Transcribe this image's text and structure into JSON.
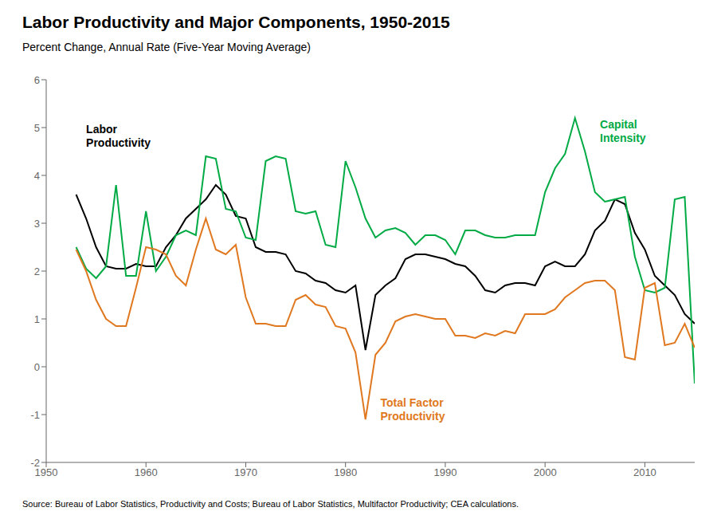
{
  "chart_data": {
    "type": "line",
    "title": "Labor Productivity and Major Components, 1950-2015",
    "subtitle": "Percent Change, Annual Rate (Five-Year Moving Average)",
    "source": "Source: Bureau of Labor Statistics, Productivity and Costs; Bureau of Labor Statistics, Multifactor Productivity; CEA calculations.",
    "x": [
      1953,
      1954,
      1955,
      1956,
      1957,
      1958,
      1959,
      1960,
      1961,
      1962,
      1963,
      1964,
      1965,
      1966,
      1967,
      1968,
      1969,
      1970,
      1971,
      1972,
      1973,
      1974,
      1975,
      1976,
      1977,
      1978,
      1979,
      1980,
      1981,
      1982,
      1983,
      1984,
      1985,
      1986,
      1987,
      1988,
      1989,
      1990,
      1991,
      1992,
      1993,
      1994,
      1995,
      1996,
      1997,
      1998,
      1999,
      2000,
      2001,
      2002,
      2003,
      2004,
      2005,
      2006,
      2007,
      2008,
      2009,
      2010,
      2011,
      2012,
      2013,
      2014,
      2015
    ],
    "series": [
      {
        "name": "Labor\nProductivity",
        "color": "#000000",
        "values": [
          3.6,
          3.1,
          2.5,
          2.1,
          2.05,
          2.05,
          2.15,
          2.1,
          2.1,
          2.5,
          2.75,
          3.1,
          3.3,
          3.5,
          3.8,
          3.6,
          3.15,
          3.1,
          2.5,
          2.4,
          2.4,
          2.35,
          2.0,
          1.95,
          1.8,
          1.75,
          1.6,
          1.55,
          1.7,
          0.35,
          1.5,
          1.7,
          1.85,
          2.25,
          2.35,
          2.35,
          2.3,
          2.25,
          2.15,
          2.1,
          1.9,
          1.6,
          1.55,
          1.7,
          1.75,
          1.75,
          1.7,
          2.1,
          2.2,
          2.1,
          2.1,
          2.35,
          2.85,
          3.05,
          3.5,
          3.4,
          2.8,
          2.45,
          1.9,
          1.7,
          1.5,
          1.1,
          0.9
        ]
      },
      {
        "name": "Capital\nIntensity",
        "color": "#00aa44",
        "values": [
          2.5,
          2.05,
          1.85,
          2.1,
          3.8,
          1.9,
          1.9,
          3.25,
          2.0,
          2.3,
          2.75,
          2.85,
          2.75,
          4.4,
          4.35,
          3.3,
          3.25,
          2.7,
          2.65,
          4.3,
          4.4,
          4.35,
          3.25,
          3.2,
          3.25,
          2.55,
          2.5,
          4.3,
          3.75,
          3.1,
          2.7,
          2.85,
          2.9,
          2.8,
          2.55,
          2.75,
          2.75,
          2.65,
          2.35,
          2.85,
          2.85,
          2.75,
          2.7,
          2.7,
          2.75,
          2.75,
          2.75,
          3.65,
          4.15,
          4.45,
          5.2,
          4.5,
          3.65,
          3.45,
          3.5,
          3.55,
          2.3,
          1.6,
          1.55,
          1.65,
          3.5,
          3.55,
          -0.35
        ]
      },
      {
        "name": "Total Factor\nProductivity",
        "color": "#e07820",
        "values": [
          2.45,
          2.0,
          1.4,
          1.0,
          0.85,
          0.85,
          1.65,
          2.5,
          2.45,
          2.35,
          1.9,
          1.7,
          2.45,
          3.1,
          2.45,
          2.35,
          2.55,
          1.45,
          0.9,
          0.9,
          0.85,
          0.85,
          1.4,
          1.5,
          1.3,
          1.25,
          0.85,
          0.8,
          0.3,
          -1.1,
          0.25,
          0.5,
          0.95,
          1.05,
          1.1,
          1.05,
          1.0,
          1.0,
          0.65,
          0.65,
          0.6,
          0.7,
          0.65,
          0.75,
          0.7,
          1.1,
          1.1,
          1.1,
          1.2,
          1.45,
          1.6,
          1.75,
          1.8,
          1.8,
          1.6,
          0.2,
          0.15,
          1.65,
          1.75,
          0.45,
          0.5,
          0.9,
          0.4
        ]
      }
    ],
    "annotations": [
      {
        "text": "Labor\nProductivity",
        "x": 1954.0,
        "y": 4.55,
        "color": "#000000",
        "position": "above"
      },
      {
        "text": "Capital\nIntensity",
        "x": 2005.5,
        "y": 4.65,
        "color": "#00aa44",
        "position": "above"
      },
      {
        "text": "Total Factor\nProductivity",
        "x": 1983.5,
        "y": -0.6,
        "color": "#e07820",
        "position": "below"
      }
    ],
    "xlim": [
      1950,
      2015
    ],
    "ylim": [
      -2,
      6
    ],
    "xticks": [
      1950,
      1960,
      1970,
      1980,
      1990,
      2000,
      2010
    ],
    "yticks": [
      -2,
      -1,
      0,
      1,
      2,
      3,
      4,
      5,
      6
    ],
    "grid": false
  }
}
